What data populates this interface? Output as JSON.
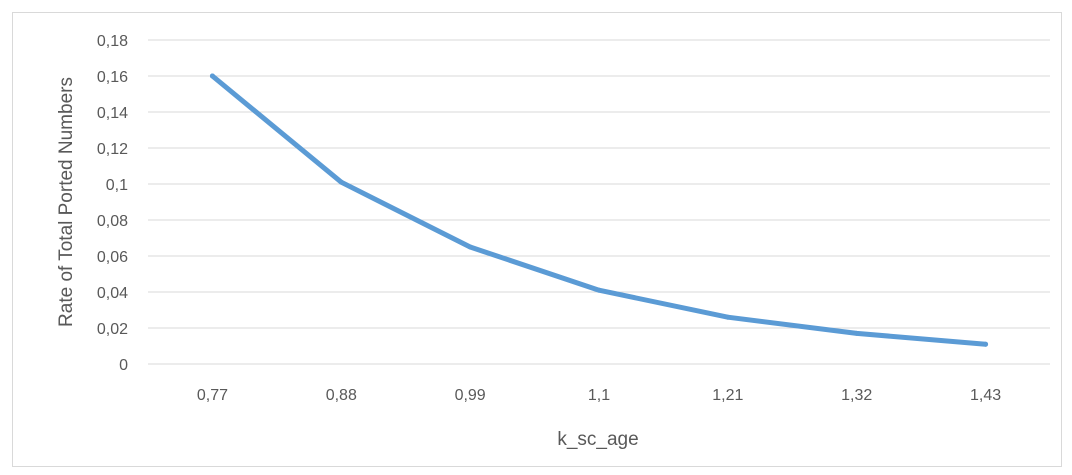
{
  "chart_data": {
    "type": "line",
    "title": "",
    "xlabel": "k_sc_age",
    "ylabel": "Rate of Total Ported Numbers",
    "categories": [
      "0,77",
      "0,88",
      "0,99",
      "1,1",
      "1,21",
      "1,32",
      "1,43"
    ],
    "series": [
      {
        "name": "",
        "color": "#5b9bd5",
        "values": [
          0.16,
          0.101,
          0.065,
          0.041,
          0.026,
          0.017,
          0.011
        ]
      }
    ],
    "ylim": [
      0,
      0.18
    ],
    "yticks": [
      0,
      0.02,
      0.04,
      0.06,
      0.08,
      0.1,
      0.12,
      0.14,
      0.16,
      0.18
    ],
    "ytick_labels": [
      "0",
      "0,02",
      "0,04",
      "0,06",
      "0,08",
      "0,1",
      "0,12",
      "0,14",
      "0,16",
      "0,18"
    ],
    "grid": true,
    "legend": "none",
    "colors": {
      "line": "#5b9bd5",
      "grid": "#d9d9d9",
      "text": "#595959"
    }
  }
}
